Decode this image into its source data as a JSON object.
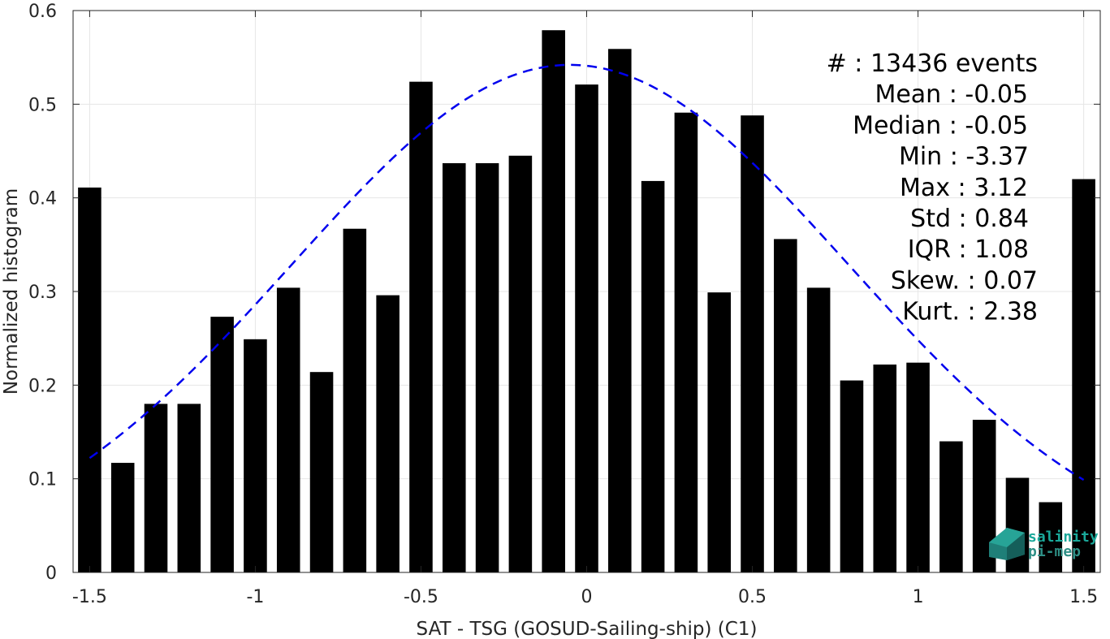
{
  "chart_data": {
    "type": "bar",
    "x": [
      -1.5,
      -1.4,
      -1.3,
      -1.2,
      -1.1,
      -1.0,
      -0.9,
      -0.8,
      -0.7,
      -0.6,
      -0.5,
      -0.4,
      -0.3,
      -0.2,
      -0.1,
      0.0,
      0.1,
      0.2,
      0.3,
      0.4,
      0.5,
      0.6,
      0.7,
      0.8,
      0.9,
      1.0,
      1.1,
      1.2,
      1.3,
      1.4,
      1.5
    ],
    "values": [
      0.411,
      0.117,
      0.18,
      0.18,
      0.273,
      0.249,
      0.304,
      0.214,
      0.367,
      0.296,
      0.524,
      0.437,
      0.437,
      0.445,
      0.579,
      0.521,
      0.559,
      0.418,
      0.491,
      0.299,
      0.488,
      0.356,
      0.304,
      0.205,
      0.222,
      0.224,
      0.14,
      0.163,
      0.101,
      0.075,
      0.42
    ],
    "bar_color": "#000000",
    "fit": {
      "type": "normal",
      "mean": -0.05,
      "std": 0.84,
      "peak": 0.542,
      "color": "#0000ee",
      "style": "dashed"
    },
    "xlabel": "SAT - TSG (GOSUD-Sailing-ship) (C1)",
    "ylabel": "Normalized histogram",
    "xlim": [
      -1.55,
      1.55
    ],
    "ylim": [
      0,
      0.6
    ],
    "xticks": [
      -1.5,
      -1,
      -0.5,
      0,
      0.5,
      1,
      1.5
    ],
    "xtick_labels": [
      "-1.5",
      "-1",
      "-0.5",
      "0",
      "0.5",
      "1",
      "1.5"
    ],
    "yticks": [
      0,
      0.1,
      0.2,
      0.3,
      0.4,
      0.5,
      0.6
    ],
    "ytick_labels": [
      "0",
      "0.1",
      "0.2",
      "0.3",
      "0.4",
      "0.5",
      "0.6"
    ],
    "grid": true,
    "stats": [
      "#  : 13436 events",
      "Mean : -0.05",
      "Median : -0.05",
      "Min : -3.37",
      "Max : 3.12",
      "Std : 0.84",
      "IQR : 1.08",
      "Skew. : 0.07",
      "Kurt. : 2.38"
    ]
  },
  "logo": {
    "line1": "salinity",
    "line2": "pi-mep",
    "color": "#1aa89a"
  }
}
